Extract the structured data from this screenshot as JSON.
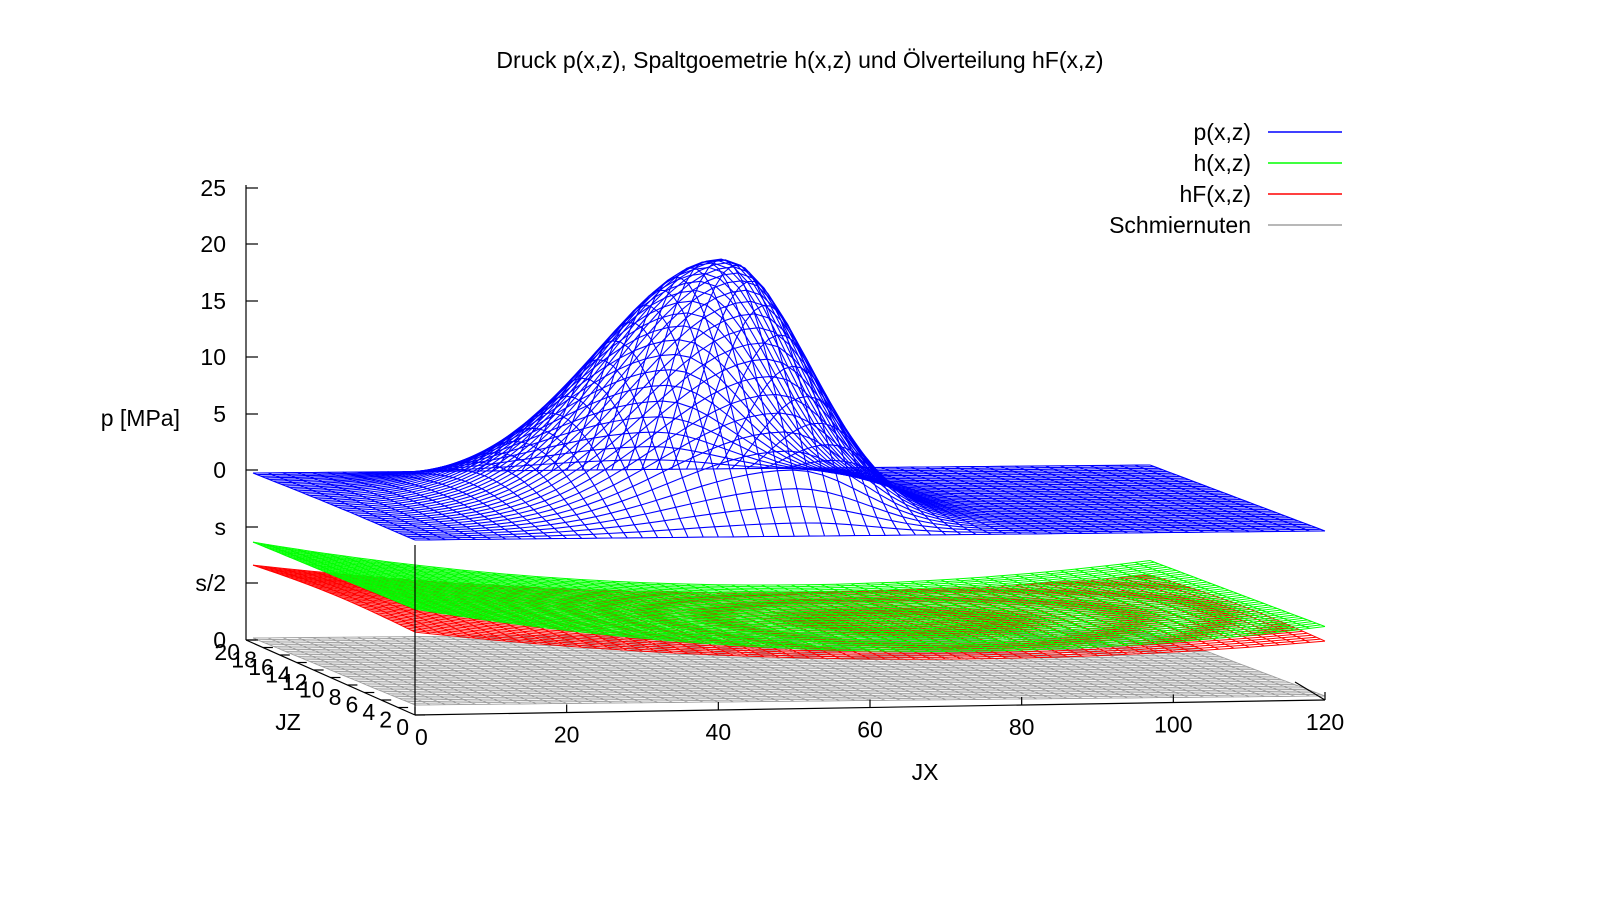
{
  "chart_data": {
    "type": "surface3d",
    "title": "Druck p(x,z), Spaltgoemetrie h(x,z) und Ölverteilung hF(x,z)",
    "xlabel": "JX",
    "ylabel": "JZ",
    "zlabel": "p [MPa]",
    "xlim": [
      0,
      120
    ],
    "ylim": [
      0,
      20
    ],
    "x_ticks": [
      "0",
      "20",
      "40",
      "60",
      "80",
      "100",
      "120"
    ],
    "y_ticks": [
      "0",
      "2",
      "4",
      "6",
      "8",
      "10",
      "12",
      "14",
      "16",
      "18",
      "20"
    ],
    "z_ticks": [
      "0",
      "s/2",
      "s",
      "0",
      "5",
      "10",
      "15",
      "20",
      "25"
    ],
    "legend_position": "top-right",
    "series": [
      {
        "name": "p(x,z)",
        "color": "#0000ff",
        "peak_value": 21.5,
        "peak_jx": 52,
        "range": [
          0,
          21.5
        ]
      },
      {
        "name": "h(x,z)",
        "color": "#00ff00"
      },
      {
        "name": "hF(x,z)",
        "color": "#ff0000"
      },
      {
        "name": "Schmiernuten",
        "color": "#a0a0a0"
      }
    ]
  }
}
